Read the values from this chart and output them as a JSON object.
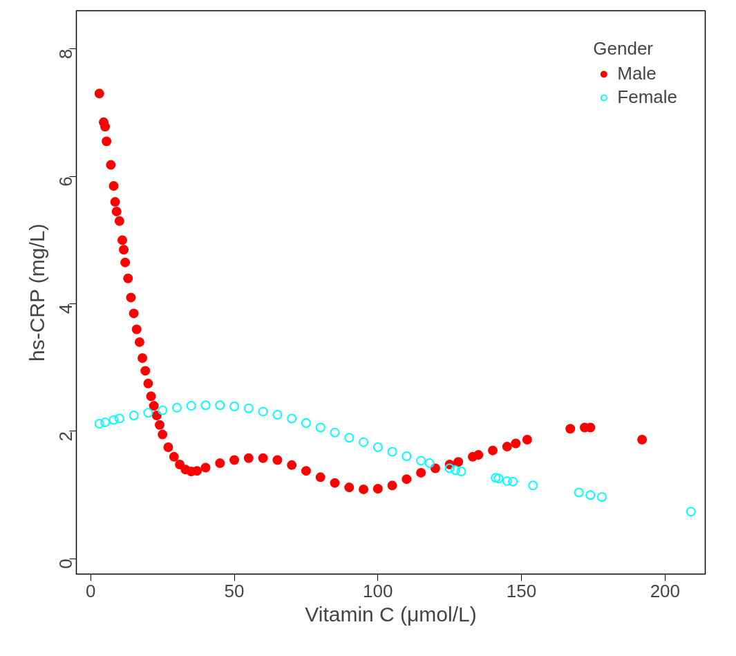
{
  "chart_data": {
    "type": "scatter",
    "xlabel": "Vitamin C (μmol/L)",
    "ylabel": "hs-CRP (mg/L)",
    "legend_title": "Gender",
    "legend": "top right",
    "grid": false,
    "marker": "circle",
    "xlim": [
      -5,
      214
    ],
    "ylim": [
      -0.24,
      8.6
    ],
    "xticks": [
      0,
      50,
      100,
      150,
      200
    ],
    "yticks": [
      0,
      2,
      4,
      6,
      8
    ],
    "series": [
      {
        "name": "Male",
        "color": "#ff0000",
        "x": [
          3,
          4.5,
          5,
          5.5,
          7,
          8,
          8.5,
          9,
          10,
          11,
          11.5,
          12,
          13,
          14,
          15,
          16,
          17,
          18,
          19,
          20,
          21,
          22,
          23,
          24,
          25,
          27,
          29,
          31,
          33,
          35,
          37,
          40,
          45,
          50,
          55,
          60,
          65,
          70,
          75,
          80,
          85,
          90,
          95,
          100,
          105,
          110,
          115,
          120,
          125,
          128,
          133,
          135,
          140,
          145,
          148,
          152,
          167,
          172,
          174,
          192
        ],
        "values": [
          7.3,
          6.85,
          6.78,
          6.55,
          6.18,
          5.85,
          5.6,
          5.45,
          5.3,
          5.0,
          4.85,
          4.65,
          4.4,
          4.1,
          3.85,
          3.6,
          3.4,
          3.15,
          2.95,
          2.75,
          2.55,
          2.4,
          2.25,
          2.1,
          1.95,
          1.75,
          1.6,
          1.48,
          1.4,
          1.37,
          1.38,
          1.43,
          1.5,
          1.55,
          1.58,
          1.58,
          1.55,
          1.47,
          1.38,
          1.28,
          1.19,
          1.12,
          1.09,
          1.1,
          1.15,
          1.25,
          1.35,
          1.42,
          1.48,
          1.52,
          1.6,
          1.63,
          1.7,
          1.76,
          1.81,
          1.87,
          2.04,
          2.06,
          2.06,
          1.87
        ]
      },
      {
        "name": "Female",
        "color": "#00ffff",
        "x": [
          3,
          5,
          8,
          10,
          15,
          20,
          25,
          30,
          35,
          40,
          45,
          50,
          55,
          60,
          65,
          70,
          75,
          80,
          85,
          90,
          95,
          100,
          105,
          110,
          115,
          118,
          125,
          127,
          129,
          141,
          142,
          145,
          147,
          154,
          170,
          174,
          178,
          209
        ],
        "values": [
          2.12,
          2.14,
          2.18,
          2.2,
          2.25,
          2.29,
          2.33,
          2.37,
          2.4,
          2.41,
          2.41,
          2.39,
          2.36,
          2.31,
          2.26,
          2.2,
          2.13,
          2.06,
          1.98,
          1.9,
          1.83,
          1.75,
          1.68,
          1.61,
          1.54,
          1.5,
          1.42,
          1.39,
          1.37,
          1.27,
          1.26,
          1.22,
          1.21,
          1.15,
          1.04,
          1.0,
          0.97,
          0.74
        ]
      }
    ]
  }
}
